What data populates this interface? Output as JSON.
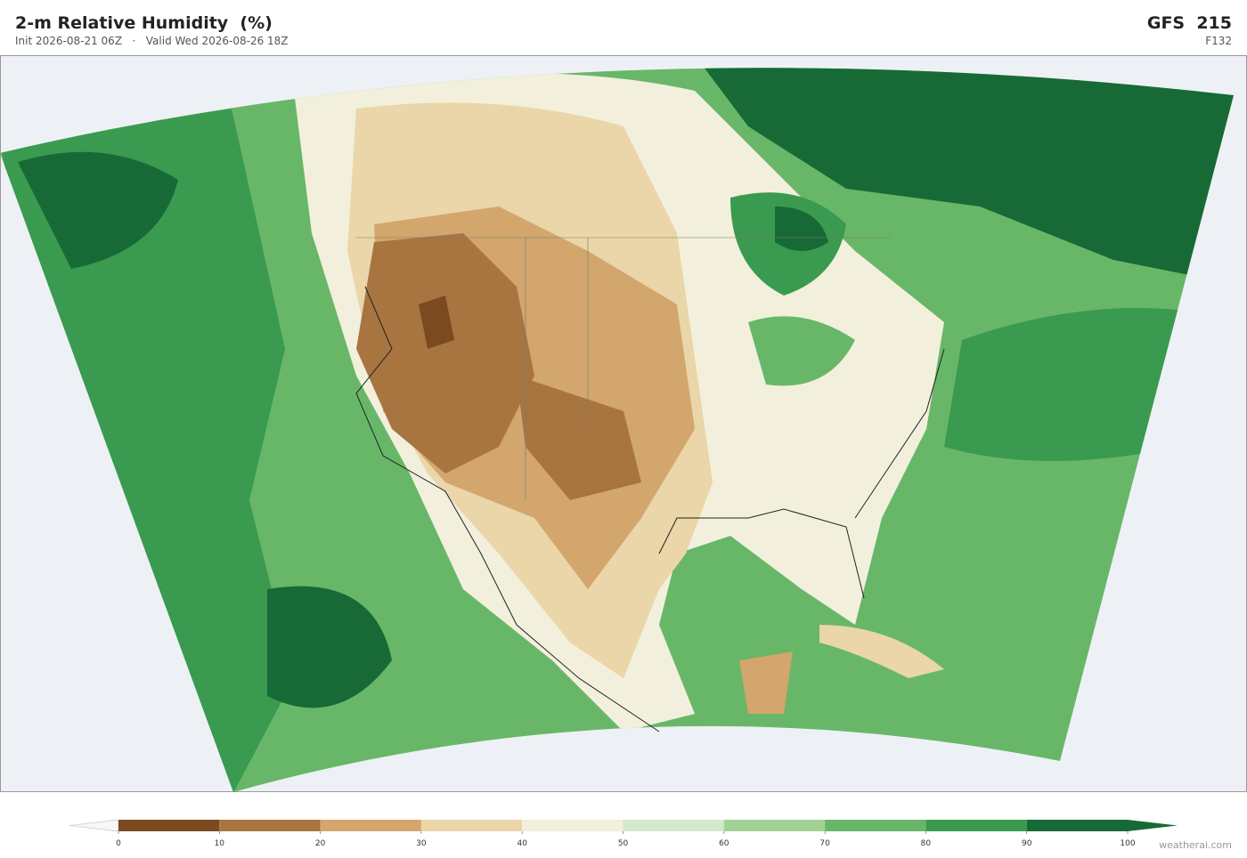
{
  "header": {
    "title": "2-m Relative Humidity  (%)",
    "init": "Init 2026-08-21 06Z",
    "separator": "·",
    "valid": "Valid Wed 2026-08-26 18Z",
    "model": "GFS  215",
    "forecast_hour": "F132"
  },
  "colorbar": {
    "ticks": [
      0,
      10,
      20,
      30,
      40,
      50,
      60,
      70,
      80,
      90,
      100
    ],
    "colors": [
      "#7b4a21",
      "#a87540",
      "#d2a66c",
      "#ead6a8",
      "#f2f0dc",
      "#d5e8cc",
      "#a1d294",
      "#68b769",
      "#3a9a4f",
      "#176a35"
    ],
    "under_color": "#f7f7f7",
    "over_color": "#176a35"
  },
  "footer": {
    "credit": "weatherai.com"
  }
}
